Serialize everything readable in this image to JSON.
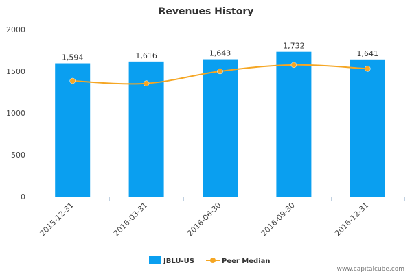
{
  "chart_data": {
    "type": "bar",
    "title": "Revenues History",
    "categories": [
      "2015-12-31",
      "2016-03-31",
      "2016-06-30",
      "2016-09-30",
      "2016-12-31"
    ],
    "series": [
      {
        "name": "JBLU-US",
        "type": "bar",
        "color": "#0a9ff0",
        "values": [
          1594,
          1616,
          1643,
          1732,
          1641
        ],
        "labels": [
          "1,594",
          "1,616",
          "1,643",
          "1,732",
          "1,641"
        ]
      },
      {
        "name": "Peer Median",
        "type": "line",
        "color": "#f5a623",
        "values": [
          1385,
          1355,
          1500,
          1575,
          1530
        ]
      }
    ],
    "ylim": [
      0,
      2000
    ],
    "yticks": [
      "0",
      "500",
      "1000",
      "1500",
      "2000"
    ],
    "grid": false,
    "legend_position": "bottom-center"
  },
  "credit": "www.capitalcube.com"
}
